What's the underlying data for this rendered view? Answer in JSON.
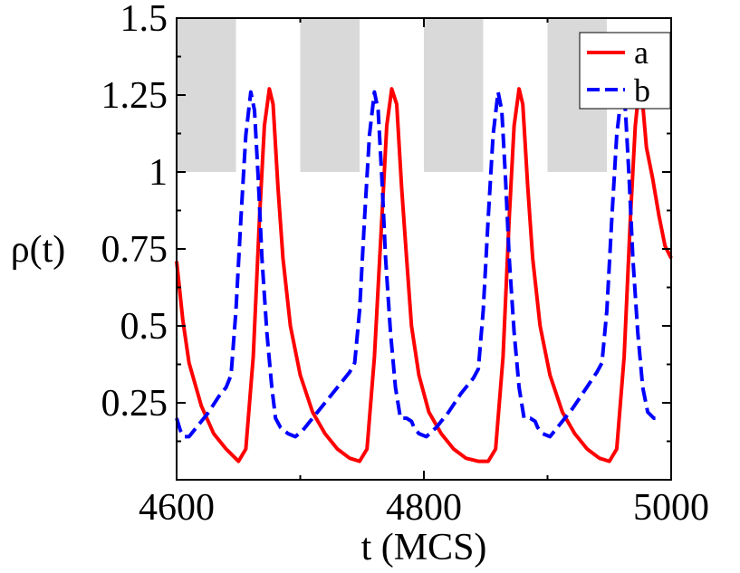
{
  "chart_data": {
    "type": "line",
    "title": "",
    "xlabel": "t (MCS)",
    "ylabel": "ρ(t)",
    "xlim": [
      4600,
      5000
    ],
    "ylim": [
      0,
      1.5
    ],
    "x_ticks": [
      4600,
      4800,
      5000
    ],
    "x_tick_labels": [
      "4600",
      "4800",
      "5000"
    ],
    "y_ticks": [
      0.25,
      0.5,
      0.75,
      1,
      1.25,
      1.5
    ],
    "y_tick_labels": [
      "0.25",
      "0.5",
      "0.75",
      "1",
      "1.25",
      "1.5"
    ],
    "grid": false,
    "legend_position": "top-right",
    "shaded_regions": [
      {
        "x": [
          4600,
          4648
        ],
        "y": [
          1,
          1.5
        ]
      },
      {
        "x": [
          4700,
          4748
        ],
        "y": [
          1,
          1.5
        ]
      },
      {
        "x": [
          4800,
          4848
        ],
        "y": [
          1,
          1.5
        ]
      },
      {
        "x": [
          4900,
          4948
        ],
        "y": [
          1,
          1.5
        ]
      }
    ],
    "series": [
      {
        "name": "a",
        "color": "#ff0000",
        "style": "solid",
        "x": [
          4600,
          4605,
          4610,
          4620,
          4630,
          4640,
          4650,
          4656,
          4662,
          4667,
          4671,
          4675,
          4678,
          4682,
          4686,
          4692,
          4700,
          4710,
          4720,
          4730,
          4740,
          4748,
          4754,
          4760,
          4766,
          4770,
          4774,
          4778,
          4782,
          4786,
          4790,
          4796,
          4804,
          4814,
          4824,
          4834,
          4844,
          4852,
          4858,
          4864,
          4869,
          4873,
          4877,
          4880,
          4884,
          4888,
          4894,
          4902,
          4912,
          4922,
          4932,
          4942,
          4950,
          4956,
          4962,
          4967,
          4971,
          4974,
          4977,
          4980,
          4985,
          4990,
          4995,
          5000
        ],
        "y": [
          0.71,
          0.52,
          0.38,
          0.24,
          0.15,
          0.1,
          0.06,
          0.1,
          0.4,
          0.85,
          1.15,
          1.27,
          1.22,
          0.95,
          0.72,
          0.5,
          0.34,
          0.22,
          0.15,
          0.1,
          0.07,
          0.06,
          0.1,
          0.4,
          0.85,
          1.15,
          1.27,
          1.22,
          0.95,
          0.72,
          0.5,
          0.34,
          0.22,
          0.15,
          0.1,
          0.07,
          0.06,
          0.06,
          0.1,
          0.4,
          0.85,
          1.15,
          1.27,
          1.22,
          0.95,
          0.72,
          0.5,
          0.34,
          0.22,
          0.15,
          0.1,
          0.07,
          0.06,
          0.1,
          0.4,
          0.85,
          1.15,
          1.27,
          1.22,
          1.08,
          0.98,
          0.86,
          0.76,
          0.72
        ]
      },
      {
        "name": "b",
        "color": "#0000ff",
        "style": "dashed",
        "x": [
          4600,
          4603,
          4606,
          4610,
          4618,
          4626,
          4634,
          4640,
          4644,
          4648,
          4652,
          4656,
          4660,
          4663,
          4666,
          4669,
          4673,
          4677,
          4680,
          4684,
          4690,
          4696,
          4702,
          4710,
          4720,
          4730,
          4740,
          4744,
          4748,
          4752,
          4756,
          4760,
          4763,
          4766,
          4769,
          4773,
          4777,
          4781,
          4786,
          4790,
          4792,
          4796,
          4802,
          4810,
          4820,
          4830,
          4840,
          4844,
          4848,
          4852,
          4856,
          4860,
          4863,
          4866,
          4869,
          4873,
          4877,
          4881,
          4886,
          4890,
          4892,
          4896,
          4902,
          4910,
          4920,
          4930,
          4940,
          4944,
          4948,
          4952,
          4956,
          4960,
          4963,
          4966,
          4969,
          4973,
          4977,
          4981,
          4986,
          4990
        ],
        "y": [
          0.2,
          0.16,
          0.14,
          0.14,
          0.18,
          0.22,
          0.27,
          0.3,
          0.34,
          0.55,
          0.85,
          1.12,
          1.26,
          1.2,
          0.98,
          0.72,
          0.48,
          0.3,
          0.2,
          0.17,
          0.15,
          0.14,
          0.16,
          0.2,
          0.25,
          0.3,
          0.35,
          0.38,
          0.55,
          0.85,
          1.12,
          1.26,
          1.2,
          0.98,
          0.72,
          0.48,
          0.3,
          0.2,
          0.2,
          0.19,
          0.17,
          0.15,
          0.14,
          0.17,
          0.22,
          0.28,
          0.33,
          0.36,
          0.55,
          0.85,
          1.12,
          1.26,
          1.2,
          0.98,
          0.72,
          0.48,
          0.3,
          0.2,
          0.2,
          0.19,
          0.17,
          0.15,
          0.14,
          0.18,
          0.23,
          0.29,
          0.35,
          0.38,
          0.55,
          0.85,
          1.12,
          1.26,
          1.2,
          0.98,
          0.72,
          0.48,
          0.3,
          0.22,
          0.2,
          0.2
        ]
      }
    ]
  }
}
